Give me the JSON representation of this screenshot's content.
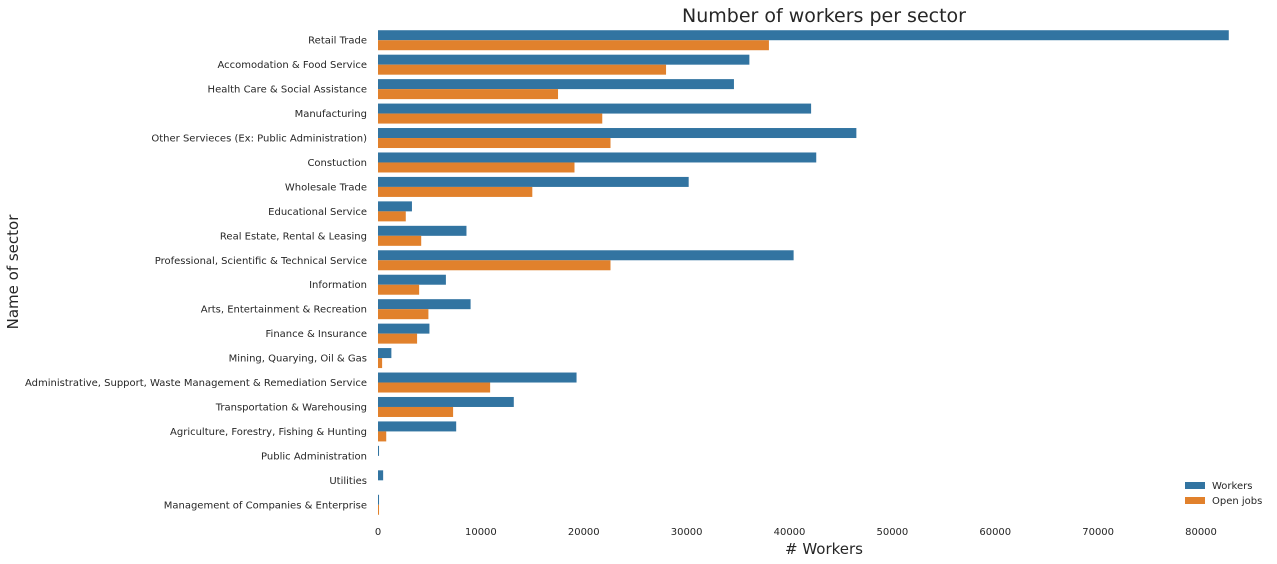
{
  "chart_data": {
    "type": "bar",
    "orientation": "horizontal",
    "title": "Number of workers per sector",
    "xlabel": "# Workers",
    "ylabel": "Name of sector",
    "xlim": [
      0,
      85000
    ],
    "xticks": [
      0,
      10000,
      20000,
      30000,
      40000,
      50000,
      60000,
      70000,
      80000
    ],
    "grid": false,
    "legend_position": "bottom-right",
    "categories": [
      "Retail Trade",
      "Accomodation & Food Service",
      "Health Care & Social Assistance",
      "Manufacturing",
      "Other Servieces (Ex: Public Administration)",
      "Constuction",
      "Wholesale Trade",
      "Educational Service",
      "Real Estate, Rental & Leasing",
      "Professional, Scientific & Technical Service",
      "Information",
      "Arts, Entertainment & Recreation",
      "Finance & Insurance",
      "Mining, Quarying, Oil & Gas",
      "Administrative, Support, Waste Management & Remediation Service",
      "Transportation & Warehousing",
      "Agriculture, Forestry, Fishing & Hunting",
      "Public Administration",
      "Utilities",
      "Management of Companies & Enterprise"
    ],
    "series": [
      {
        "name": "Workers",
        "color": "#3274a1",
        "values": [
          82700,
          36100,
          34600,
          42100,
          46500,
          42600,
          30200,
          3300,
          8600,
          40400,
          6600,
          9000,
          5000,
          1300,
          19300,
          13200,
          7600,
          100,
          500,
          100
        ]
      },
      {
        "name": "Open jobs",
        "color": "#e1812c",
        "values": [
          38000,
          28000,
          17500,
          21800,
          22600,
          19100,
          15000,
          2700,
          4200,
          22600,
          4000,
          4900,
          3800,
          400,
          10900,
          7300,
          800,
          0,
          0,
          100
        ]
      }
    ]
  }
}
